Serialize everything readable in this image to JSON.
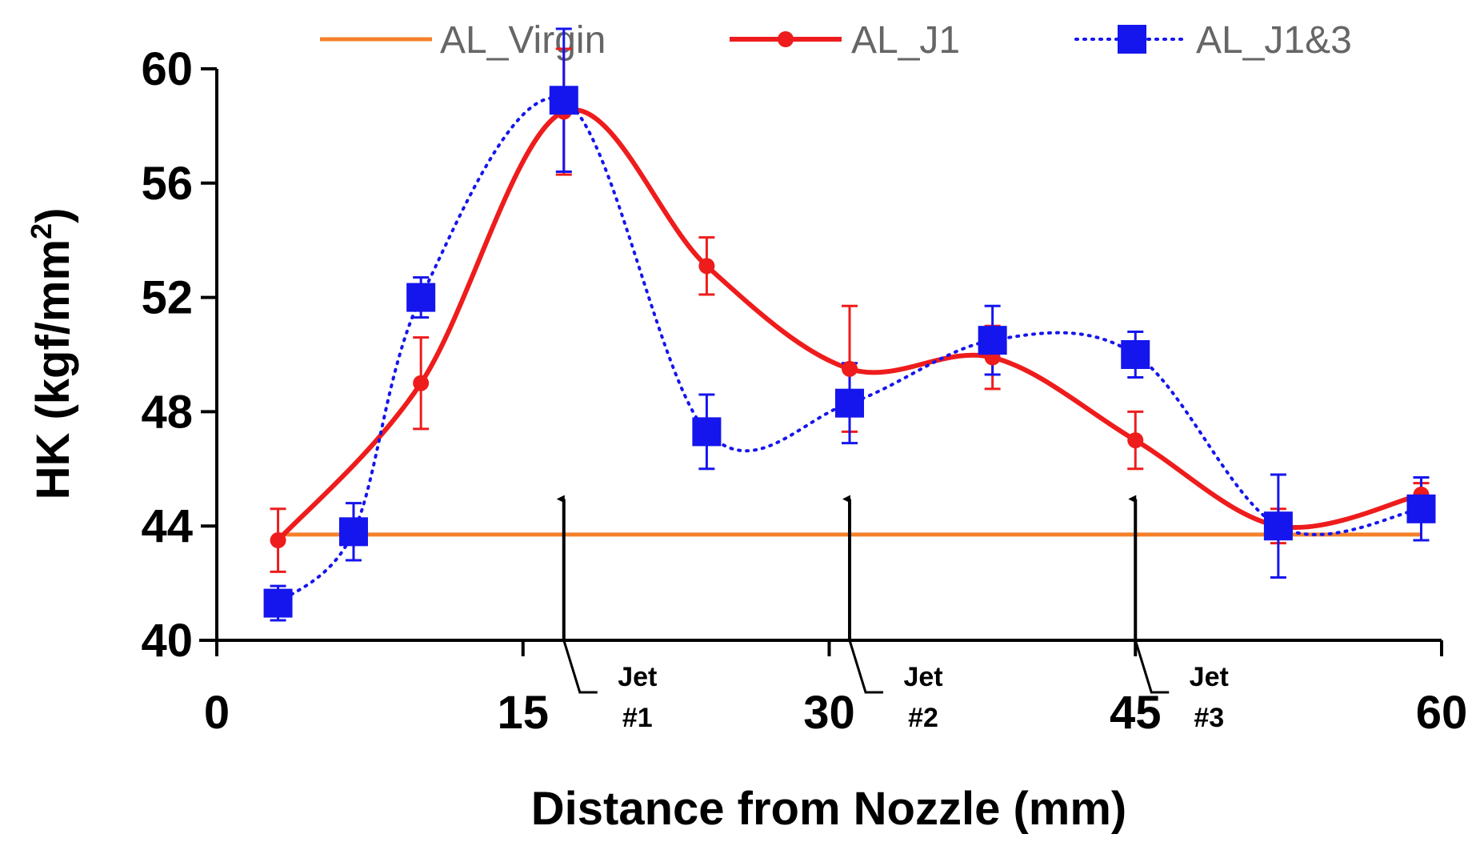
{
  "chart_data": {
    "type": "line",
    "title": "",
    "xlabel": "Distance from Nozzle (mm)",
    "ylabel_main": "HK (kgf/mm",
    "ylabel_sup": "2",
    "ylabel_close": ")",
    "xlim": [
      0,
      60
    ],
    "ylim": [
      40,
      60
    ],
    "xticks": [
      0,
      15,
      30,
      45,
      60
    ],
    "xtick_labels": [
      "0",
      "15",
      "30",
      "45",
      "60"
    ],
    "yticks": [
      40,
      44,
      48,
      52,
      56,
      60
    ],
    "ytick_labels": [
      "40",
      "44",
      "48",
      "52",
      "56",
      "60"
    ],
    "grid": false,
    "legend_position": "top",
    "series": [
      {
        "name": "AL_Virgin",
        "color": "#f4802b",
        "style": "solid",
        "marker": "none",
        "x": [
          3,
          59
        ],
        "y": [
          43.7,
          43.7
        ],
        "err": []
      },
      {
        "name": "AL_J1",
        "color": "#ee1c1c",
        "style": "solid-smooth",
        "marker": "star",
        "x": [
          3,
          10,
          17,
          24,
          31,
          38,
          45,
          52,
          59
        ],
        "y": [
          43.5,
          49.0,
          58.5,
          53.1,
          49.5,
          49.9,
          47.0,
          44.0,
          45.1
        ],
        "err": [
          1.1,
          1.6,
          2.2,
          1.0,
          2.2,
          1.1,
          1.0,
          0.6,
          0.4
        ]
      },
      {
        "name": "AL_J1&3",
        "color": "#1515ee",
        "style": "dotted-smooth",
        "marker": "square",
        "x": [
          3,
          6.7,
          10,
          17,
          24,
          31,
          38,
          45,
          52,
          59
        ],
        "y": [
          41.3,
          43.8,
          52.0,
          58.9,
          47.3,
          48.3,
          50.5,
          50.0,
          44.0,
          44.6
        ],
        "err": [
          0.6,
          1.0,
          0.7,
          2.5,
          1.3,
          1.4,
          1.2,
          0.8,
          1.8,
          1.1
        ]
      }
    ],
    "annotations": [
      {
        "label_line1": "Jet",
        "label_line2": "#1",
        "x": 17,
        "y_tip": 45,
        "y_base": 40
      },
      {
        "label_line1": "Jet",
        "label_line2": "#2",
        "x": 31,
        "y_tip": 45,
        "y_base": 40
      },
      {
        "label_line1": "Jet",
        "label_line2": "#3",
        "x": 45,
        "y_tip": 45,
        "y_base": 40
      }
    ]
  }
}
